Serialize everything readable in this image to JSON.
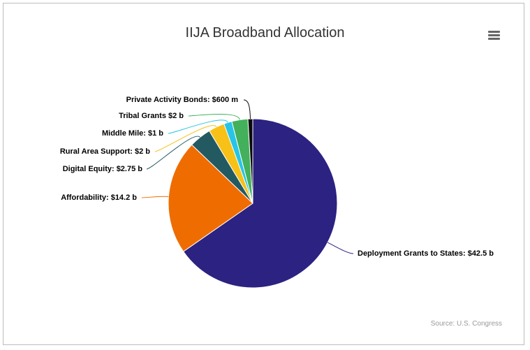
{
  "chart_data": {
    "type": "pie",
    "title": "IIJA Broadband Allocation",
    "source": "Source: U.S. Congress",
    "slices": [
      {
        "label": "Deployment Grants to States: $42.5 b",
        "value": 42.5,
        "color": "#2b2282"
      },
      {
        "label": "Affordability: $14.2 b",
        "value": 14.2,
        "color": "#ef6c00"
      },
      {
        "label": "Digital Equity: $2.75 b",
        "value": 2.75,
        "color": "#235a61"
      },
      {
        "label": "Rural Area Support: $2 b",
        "value": 2,
        "color": "#f7c117"
      },
      {
        "label": "Middle Mile: $1 b",
        "value": 1,
        "color": "#28c4e7"
      },
      {
        "label": "Tribal Grants $2 b",
        "value": 2,
        "color": "#43b05c"
      },
      {
        "label": "Private Activity Bonds: $600 m",
        "value": 0.6,
        "color": "#0a0a0a"
      }
    ]
  },
  "menu_icon": "hamburger-menu-icon"
}
